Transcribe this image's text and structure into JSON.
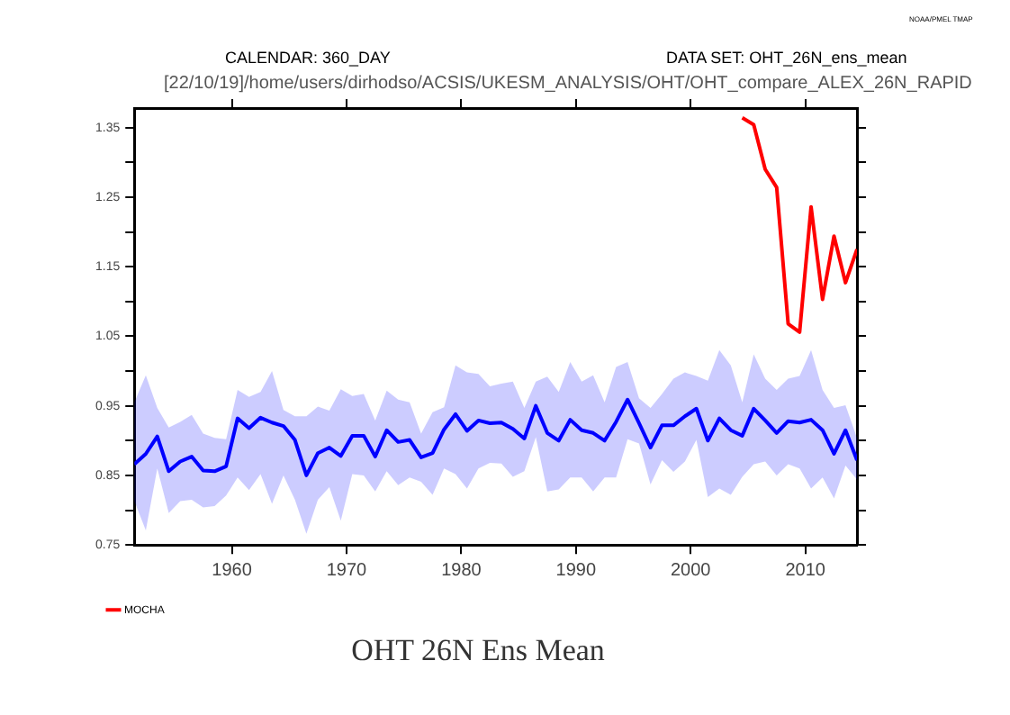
{
  "chart_data": {
    "type": "line",
    "title": "OHT 26N Ens Mean",
    "annotations": [
      "CALENDAR: 360_DAY",
      "DATA SET: OHT_26N_ens_mean",
      "[22/10/19]/home/users/dirhodso/ACSIS/UKESM_ANALYSIS/OHT/OHT_compare_ALEX_26N_RAPID",
      "NOAA/PMEL TMAP"
    ],
    "xlim": [
      1951.5,
      2014.5
    ],
    "xticks": [
      1960,
      1970,
      1980,
      1990,
      2000,
      2010
    ],
    "ylim": [
      0.75,
      1.378
    ],
    "yticks": [
      0.75,
      {
        "value": 0.8,
        "label": null
      },
      0.85,
      {
        "value": 0.9,
        "label": null
      },
      0.95,
      {
        "value": 1.0,
        "label": null
      },
      1.05,
      {
        "value": 1.1,
        "label": null
      },
      1.15,
      {
        "value": 1.2,
        "label": null
      },
      1.25,
      {
        "value": 1.3,
        "label": null
      },
      1.35
    ],
    "grid": false,
    "legend": "bottom left",
    "marker": "none",
    "line_style": "solid",
    "series": [
      {
        "color": "#0000ff",
        "x": [
          1951.5,
          1952.5,
          1953.5,
          1954.5,
          1955.5,
          1956.5,
          1957.5,
          1958.5,
          1959.5,
          1960.5,
          1961.5,
          1962.5,
          1963.5,
          1964.5,
          1965.5,
          1966.5,
          1967.5,
          1968.5,
          1969.5,
          1970.5,
          1971.5,
          1972.5,
          1973.5,
          1974.5,
          1975.5,
          1976.5,
          1977.5,
          1978.5,
          1979.5,
          1980.5,
          1981.5,
          1982.5,
          1983.5,
          1984.5,
          1985.5,
          1986.5,
          1987.5,
          1988.5,
          1989.5,
          1990.5,
          1991.5,
          1992.5,
          1993.5,
          1994.5,
          1995.5,
          1996.5,
          1997.5,
          1998.5,
          1999.5,
          2000.5,
          2001.5,
          2002.5,
          2003.5,
          2004.5,
          2005.5,
          2006.5,
          2007.5,
          2008.5,
          2009.5,
          2010.5,
          2011.5,
          2012.5,
          2013.5,
          2014.5
        ],
        "values": [
          0.866,
          0.881,
          0.906,
          0.856,
          0.87,
          0.877,
          0.857,
          0.856,
          0.863,
          0.932,
          0.918,
          0.933,
          0.926,
          0.921,
          0.901,
          0.85,
          0.882,
          0.89,
          0.878,
          0.907,
          0.907,
          0.877,
          0.915,
          0.898,
          0.901,
          0.876,
          0.882,
          0.916,
          0.938,
          0.914,
          0.929,
          0.925,
          0.926,
          0.917,
          0.903,
          0.95,
          0.911,
          0.9,
          0.93,
          0.915,
          0.911,
          0.9,
          0.927,
          0.959,
          0.925,
          0.89,
          0.922,
          0.922,
          0.935,
          0.946,
          0.9,
          0.932,
          0.915,
          0.907,
          0.946,
          0.929,
          0.911,
          0.928,
          0.926,
          0.93,
          0.915,
          0.881,
          0.915,
          0.872
        ],
        "upper": [
          0.955,
          0.994,
          0.947,
          0.919,
          0.927,
          0.937,
          0.91,
          0.904,
          0.902,
          0.973,
          0.963,
          0.97,
          1.0,
          0.944,
          0.935,
          0.935,
          0.949,
          0.943,
          0.974,
          0.964,
          0.967,
          0.929,
          0.972,
          0.959,
          0.955,
          0.91,
          0.941,
          0.948,
          1.008,
          0.998,
          0.996,
          0.978,
          0.982,
          0.985,
          0.947,
          0.985,
          0.992,
          0.97,
          1.013,
          0.985,
          0.994,
          0.955,
          1.006,
          1.013,
          0.961,
          0.947,
          0.967,
          0.989,
          0.998,
          0.993,
          0.986,
          1.03,
          1.008,
          0.955,
          1.024,
          0.989,
          0.973,
          0.989,
          0.993,
          1.03,
          0.973,
          0.947,
          0.951,
          0.904
        ],
        "lower": [
          0.813,
          0.771,
          0.86,
          0.796,
          0.813,
          0.815,
          0.804,
          0.806,
          0.821,
          0.847,
          0.829,
          0.852,
          0.809,
          0.85,
          0.815,
          0.766,
          0.815,
          0.833,
          0.785,
          0.852,
          0.85,
          0.827,
          0.856,
          0.836,
          0.847,
          0.841,
          0.822,
          0.86,
          0.852,
          0.831,
          0.86,
          0.868,
          0.867,
          0.848,
          0.856,
          0.905,
          0.827,
          0.83,
          0.847,
          0.847,
          0.827,
          0.847,
          0.847,
          0.902,
          0.896,
          0.837,
          0.872,
          0.855,
          0.87,
          0.901,
          0.819,
          0.831,
          0.822,
          0.848,
          0.866,
          0.87,
          0.85,
          0.866,
          0.86,
          0.831,
          0.847,
          0.817,
          0.864,
          0.844
        ]
      },
      {
        "name": "MOCHA",
        "color": "#ff0000",
        "x": [
          2004.5,
          2005.5,
          2006.5,
          2007.5,
          2008.5,
          2009.5,
          2010.5,
          2011.5,
          2012.5,
          2013.5,
          2014.5
        ],
        "values": [
          1.364,
          1.354,
          1.29,
          1.264,
          1.068,
          1.056,
          1.236,
          1.103,
          1.194,
          1.127,
          1.175
        ]
      }
    ]
  }
}
